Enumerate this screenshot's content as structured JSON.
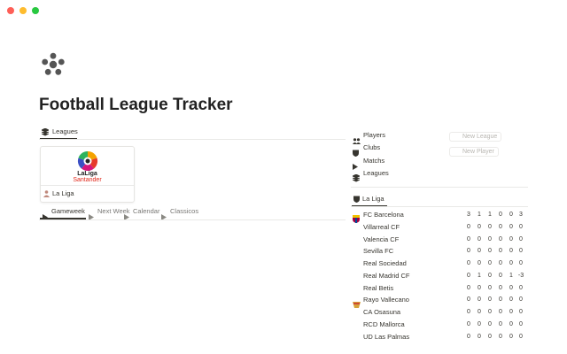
{
  "page": {
    "title": "Football League Tracker"
  },
  "leagues_view": {
    "tab": "Leagues",
    "cards": [
      {
        "name": "La Liga",
        "logo_top": "LaLiga",
        "logo_bottom": "Santander"
      }
    ]
  },
  "tabs": [
    "Gameweek",
    "Next Week",
    "Calendar",
    "Classicos"
  ],
  "links": [
    "Players",
    "Clubs",
    "Matchs",
    "Leagues"
  ],
  "buttons": [
    "New League",
    "New Player"
  ],
  "standings": {
    "tab": "La Liga",
    "rows": [
      {
        "club": "FC Barcelona",
        "stats": [
          3,
          1,
          1,
          0,
          0,
          3
        ]
      },
      {
        "club": "Villarreal CF",
        "stats": [
          0,
          0,
          0,
          0,
          0,
          0
        ]
      },
      {
        "club": "Valencia CF",
        "stats": [
          0,
          0,
          0,
          0,
          0,
          0
        ]
      },
      {
        "club": "Sevilla FC",
        "stats": [
          0,
          0,
          0,
          0,
          0,
          0
        ]
      },
      {
        "club": "Real Sociedad",
        "stats": [
          0,
          0,
          0,
          0,
          0,
          0
        ]
      },
      {
        "club": "Real Madrid CF",
        "stats": [
          0,
          1,
          0,
          0,
          1,
          -3
        ]
      },
      {
        "club": "Real Betis",
        "stats": [
          0,
          0,
          0,
          0,
          0,
          0
        ]
      },
      {
        "club": "Rayo Vallecano",
        "stats": [
          0,
          0,
          0,
          0,
          0,
          0
        ]
      },
      {
        "club": "CA Osasuna",
        "stats": [
          0,
          0,
          0,
          0,
          0,
          0
        ]
      },
      {
        "club": "RCD Mallorca",
        "stats": [
          0,
          0,
          0,
          0,
          0,
          0
        ]
      },
      {
        "club": "UD Las Palmas",
        "stats": [
          0,
          0,
          0,
          0,
          0,
          0
        ]
      }
    ]
  }
}
